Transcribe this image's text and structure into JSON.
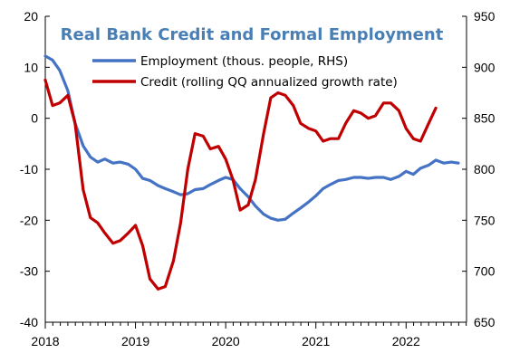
{
  "chart_data": {
    "type": "line",
    "title": "Real Bank Credit and Formal Employment",
    "title_color": "#4a7fb5",
    "x_tick_labels": [
      "2018",
      "2019",
      "2020",
      "2021",
      "2022"
    ],
    "y_left": {
      "range": [
        -40,
        20
      ],
      "ticks": [
        20,
        10,
        0,
        -10,
        -20,
        -30,
        -40
      ],
      "tick_labels": [
        "20",
        "10",
        "0",
        "-10",
        "-20",
        "-30",
        "-40"
      ]
    },
    "y_right": {
      "range": [
        650,
        950
      ],
      "ticks": [
        950,
        900,
        850,
        800,
        750,
        700,
        650
      ],
      "tick_labels": [
        "950",
        "900",
        "850",
        "800",
        "750",
        "700",
        "650"
      ]
    },
    "grid": false,
    "legend_position": "top-right",
    "series": [
      {
        "name": "Employment (thous. people, RHS)",
        "axis": "right",
        "color": "#4472c4",
        "points": [
          [
            2018.0,
            911
          ],
          [
            2018.08,
            907
          ],
          [
            2018.16,
            897
          ],
          [
            2018.25,
            877
          ],
          [
            2018.33,
            845
          ],
          [
            2018.42,
            823
          ],
          [
            2018.5,
            812
          ],
          [
            2018.58,
            807
          ],
          [
            2018.66,
            810
          ],
          [
            2018.75,
            806
          ],
          [
            2018.83,
            807
          ],
          [
            2018.92,
            805
          ],
          [
            2019.0,
            800
          ],
          [
            2019.08,
            791
          ],
          [
            2019.16,
            789
          ],
          [
            2019.25,
            784
          ],
          [
            2019.33,
            781
          ],
          [
            2019.42,
            778
          ],
          [
            2019.5,
            775
          ],
          [
            2019.58,
            776
          ],
          [
            2019.66,
            780
          ],
          [
            2019.75,
            781
          ],
          [
            2019.83,
            785
          ],
          [
            2019.92,
            789
          ],
          [
            2020.0,
            792
          ],
          [
            2020.08,
            790
          ],
          [
            2020.16,
            781
          ],
          [
            2020.25,
            773
          ],
          [
            2020.33,
            764
          ],
          [
            2020.42,
            756
          ],
          [
            2020.5,
            752
          ],
          [
            2020.58,
            750
          ],
          [
            2020.66,
            751
          ],
          [
            2020.75,
            757
          ],
          [
            2020.83,
            762
          ],
          [
            2020.92,
            768
          ],
          [
            2021.0,
            774
          ],
          [
            2021.08,
            781
          ],
          [
            2021.16,
            785
          ],
          [
            2021.25,
            789
          ],
          [
            2021.33,
            790
          ],
          [
            2021.42,
            792
          ],
          [
            2021.5,
            792
          ],
          [
            2021.58,
            791
          ],
          [
            2021.66,
            792
          ],
          [
            2021.75,
            792
          ],
          [
            2021.83,
            790
          ],
          [
            2021.92,
            793
          ],
          [
            2022.0,
            798
          ],
          [
            2022.08,
            795
          ],
          [
            2022.16,
            801
          ],
          [
            2022.25,
            804
          ],
          [
            2022.33,
            809
          ],
          [
            2022.42,
            806
          ],
          [
            2022.5,
            807
          ],
          [
            2022.58,
            806
          ]
        ]
      },
      {
        "name": "Credit (rolling QQ annualized growth rate)",
        "axis": "left",
        "color": "#c00000",
        "points": [
          [
            2018.0,
            7.5
          ],
          [
            2018.08,
            2.5
          ],
          [
            2018.16,
            3.0
          ],
          [
            2018.25,
            4.5
          ],
          [
            2018.33,
            -1.0
          ],
          [
            2018.42,
            -14.0
          ],
          [
            2018.5,
            -19.5
          ],
          [
            2018.58,
            -20.5
          ],
          [
            2018.66,
            -22.5
          ],
          [
            2018.75,
            -24.5
          ],
          [
            2018.83,
            -24.0
          ],
          [
            2018.92,
            -22.5
          ],
          [
            2019.0,
            -21.0
          ],
          [
            2019.08,
            -25.0
          ],
          [
            2019.16,
            -31.5
          ],
          [
            2019.25,
            -33.5
          ],
          [
            2019.33,
            -33.0
          ],
          [
            2019.42,
            -28.0
          ],
          [
            2019.5,
            -20.5
          ],
          [
            2019.58,
            -10.0
          ],
          [
            2019.66,
            -3.0
          ],
          [
            2019.75,
            -3.5
          ],
          [
            2019.83,
            -6.0
          ],
          [
            2019.92,
            -5.5
          ],
          [
            2020.0,
            -8.0
          ],
          [
            2020.08,
            -12.0
          ],
          [
            2020.16,
            -18.0
          ],
          [
            2020.25,
            -17.0
          ],
          [
            2020.33,
            -12.0
          ],
          [
            2020.42,
            -3.0
          ],
          [
            2020.5,
            4.0
          ],
          [
            2020.58,
            5.0
          ],
          [
            2020.66,
            4.5
          ],
          [
            2020.75,
            2.5
          ],
          [
            2020.83,
            -1.0
          ],
          [
            2020.92,
            -2.0
          ],
          [
            2021.0,
            -2.5
          ],
          [
            2021.08,
            -4.5
          ],
          [
            2021.16,
            -4.0
          ],
          [
            2021.25,
            -4.0
          ],
          [
            2021.33,
            -1.0
          ],
          [
            2021.42,
            1.5
          ],
          [
            2021.5,
            1.0
          ],
          [
            2021.58,
            0.0
          ],
          [
            2021.66,
            0.5
          ],
          [
            2021.75,
            3.0
          ],
          [
            2021.83,
            3.0
          ],
          [
            2021.92,
            1.5
          ],
          [
            2022.0,
            -2.0
          ],
          [
            2022.08,
            -4.0
          ],
          [
            2022.16,
            -4.5
          ],
          [
            2022.25,
            -1.0
          ],
          [
            2022.33,
            2.0
          ]
        ]
      }
    ]
  }
}
